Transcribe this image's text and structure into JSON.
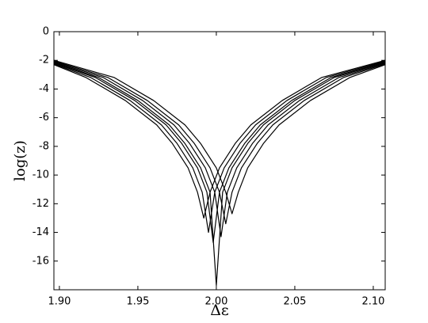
{
  "chart_data": {
    "type": "line",
    "xlabel": "Δε",
    "ylabel": "log(z)",
    "xlim": [
      1.8965,
      2.1076
    ],
    "ylim": [
      -18,
      0
    ],
    "xticks": [
      {
        "value": 1.9,
        "label": "1.90"
      },
      {
        "value": 1.95,
        "label": "1.95"
      },
      {
        "value": 2,
        "label": "2.00"
      },
      {
        "value": 2.05,
        "label": "2.05"
      },
      {
        "value": 2.1,
        "label": "2.10"
      }
    ],
    "yticks": [
      0,
      -2,
      -4,
      -6,
      -8,
      -10,
      -12,
      -14,
      -16
    ],
    "color": "#000000",
    "series": [
      {
        "x": [
          1.8965,
          1.917,
          1.942,
          1.962,
          1.972,
          1.982,
          1.988,
          1.992,
          1.996,
          2.002,
          2.012,
          2.022,
          2.042,
          2.067,
          2.1076
        ],
        "values": [
          -2.3,
          -3.2,
          -4.8,
          -6.5,
          -7.8,
          -9.5,
          -11.2,
          -13.0,
          -11.2,
          -9.5,
          -7.8,
          -6.5,
          -4.8,
          -3.2,
          -2.0
        ]
      },
      {
        "x": [
          1.8965,
          1.92,
          1.945,
          1.965,
          1.975,
          1.985,
          1.991,
          1.995,
          1.999,
          2.005,
          2.015,
          2.025,
          2.045,
          2.07,
          2.1076
        ],
        "values": [
          -2.25,
          -3.2,
          -4.8,
          -6.5,
          -7.8,
          -9.5,
          -11.2,
          -14.0,
          -11.2,
          -9.5,
          -7.8,
          -6.5,
          -4.8,
          -3.2,
          -2.05
        ]
      },
      {
        "x": [
          1.8965,
          1.923,
          1.948,
          1.968,
          1.978,
          1.988,
          1.994,
          1.998,
          2.002,
          2.008,
          2.018,
          2.028,
          2.048,
          2.073,
          2.1076
        ],
        "values": [
          -2.2,
          -3.2,
          -4.8,
          -6.5,
          -7.8,
          -9.5,
          -11.2,
          -14.7,
          -11.2,
          -9.5,
          -7.8,
          -6.5,
          -4.8,
          -3.2,
          -2.1
        ]
      },
      {
        "x": [
          1.8965,
          1.925,
          1.95,
          1.97,
          1.98,
          1.99,
          1.996,
          2.0,
          2.004,
          2.01,
          2.02,
          2.03,
          2.05,
          2.075,
          2.1076
        ],
        "values": [
          -2.15,
          -3.2,
          -4.8,
          -6.5,
          -7.8,
          -9.5,
          -11.2,
          -17.7,
          -11.2,
          -9.5,
          -7.8,
          -6.5,
          -4.8,
          -3.2,
          -2.15
        ]
      },
      {
        "x": [
          1.8965,
          1.928,
          1.953,
          1.973,
          1.983,
          1.993,
          1.999,
          2.003,
          2.007,
          2.013,
          2.023,
          2.033,
          2.053,
          2.078,
          2.1076
        ],
        "values": [
          -2.1,
          -3.2,
          -4.8,
          -6.5,
          -7.8,
          -9.5,
          -11.2,
          -14.3,
          -11.2,
          -9.5,
          -7.8,
          -6.5,
          -4.8,
          -3.2,
          -2.2
        ]
      },
      {
        "x": [
          1.8965,
          1.931,
          1.956,
          1.976,
          1.986,
          1.996,
          2.002,
          2.006,
          2.01,
          2.016,
          2.026,
          2.036,
          2.056,
          2.081,
          2.1076
        ],
        "values": [
          -2.05,
          -3.2,
          -4.8,
          -6.5,
          -7.8,
          -9.5,
          -11.2,
          -13.4,
          -11.2,
          -9.5,
          -7.8,
          -6.5,
          -4.8,
          -3.2,
          -2.25
        ]
      },
      {
        "x": [
          1.8965,
          1.935,
          1.96,
          1.98,
          1.99,
          2.0,
          2.006,
          2.01,
          2.014,
          2.02,
          2.03,
          2.04,
          2.06,
          2.085,
          2.1076
        ],
        "values": [
          -2.0,
          -3.2,
          -4.8,
          -6.5,
          -7.8,
          -9.5,
          -11.2,
          -12.7,
          -11.2,
          -9.5,
          -7.8,
          -6.5,
          -4.8,
          -3.2,
          -2.3
        ]
      }
    ]
  }
}
